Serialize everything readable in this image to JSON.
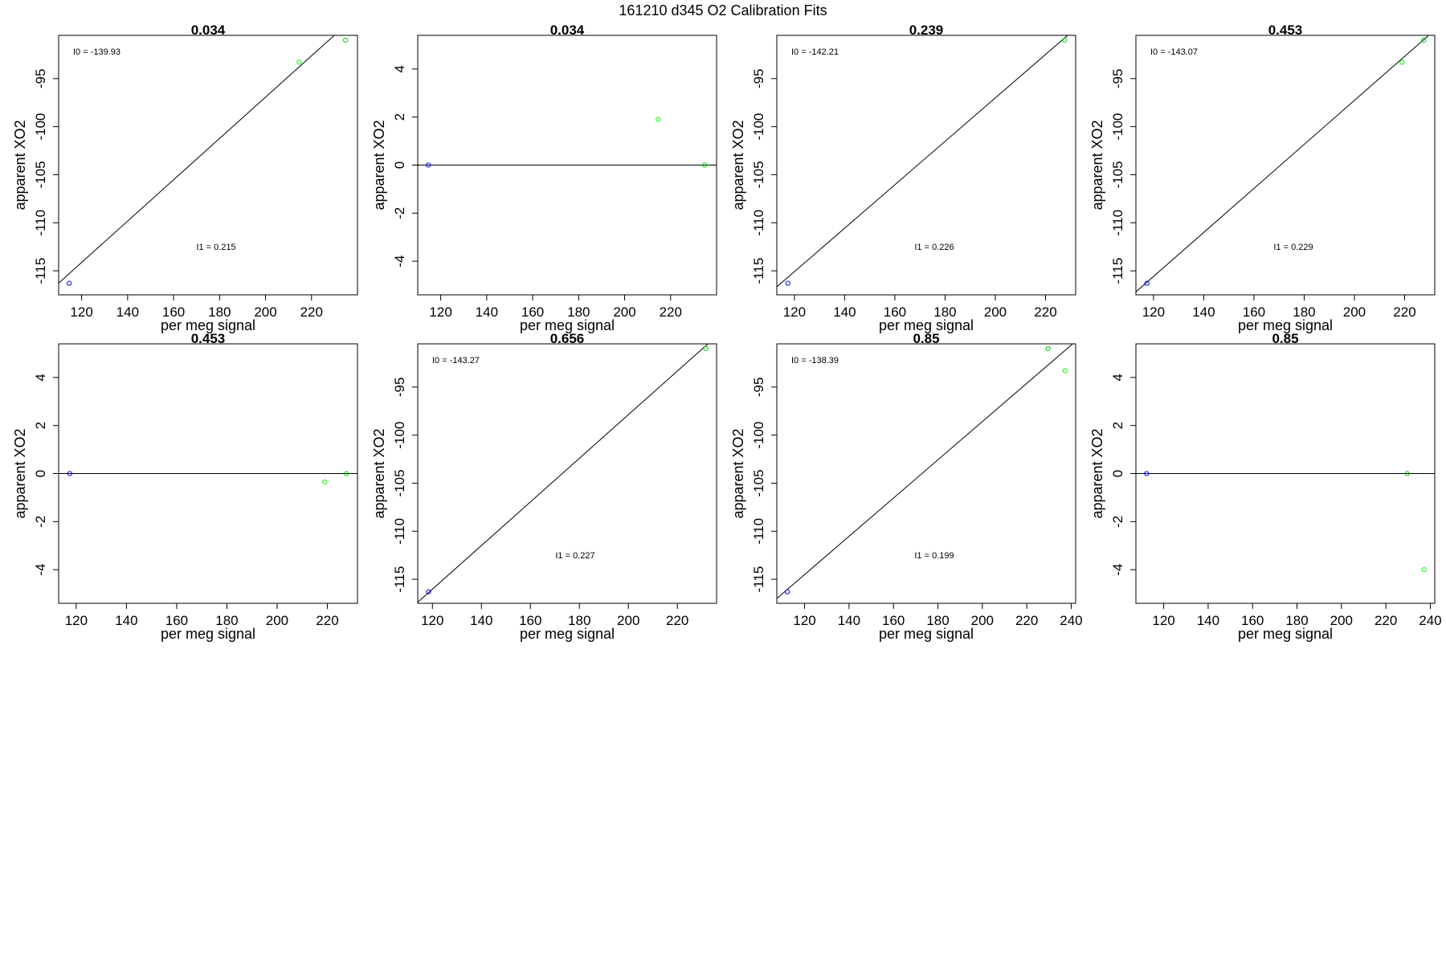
{
  "title": "161210   d345   O2 Calibration Fits",
  "colors": {
    "blue": "#0000ff",
    "green": "#00cc00",
    "lightgreen": "#00ff00",
    "line": "#000000"
  },
  "chart_data": [
    {
      "type": "scatter",
      "title": "0.034",
      "xlabel": "per meg signal",
      "ylabel": "apparent XO2",
      "xlim": [
        110,
        240
      ],
      "ylim": [
        -117.5,
        -90.5
      ],
      "xticks": [
        120,
        140,
        160,
        180,
        200,
        220
      ],
      "xtick_labels": [
        "120",
        "140",
        "160",
        "180",
        "200",
        "220"
      ],
      "yticks": [
        -115,
        -110,
        -105,
        -100,
        -95
      ],
      "ytick_labels": [
        "-115",
        "-110",
        "-105",
        "-100",
        "-95"
      ],
      "points": [
        {
          "x": 114.6,
          "y": -116.3,
          "color": "blue"
        },
        {
          "x": 214.6,
          "y": -93.3,
          "color": "lightgreen"
        },
        {
          "x": 234.8,
          "y": -91.0,
          "color": "green"
        }
      ],
      "fit_line": {
        "slope": 0.215,
        "intercept": -139.93
      },
      "ann_i0": "I0 =  -139.93",
      "ann_i1": "I1 =  0.215"
    },
    {
      "type": "scatter",
      "title": "0.034",
      "xlabel": "per meg signal",
      "ylabel": "apparent XO2",
      "xlim": [
        110,
        240
      ],
      "ylim": [
        -5.4,
        5.4
      ],
      "xticks": [
        120,
        140,
        160,
        180,
        200,
        220
      ],
      "xtick_labels": [
        "120",
        "140",
        "160",
        "180",
        "200",
        "220"
      ],
      "yticks": [
        -4,
        -2,
        0,
        2,
        4
      ],
      "ytick_labels": [
        "-4",
        "-2",
        "0",
        "2",
        "4"
      ],
      "points": [
        {
          "x": 114.6,
          "y": 0,
          "color": "blue"
        },
        {
          "x": 214.6,
          "y": 1.9,
          "color": "lightgreen"
        },
        {
          "x": 234.8,
          "y": 0,
          "color": "green"
        }
      ],
      "fit_line": {
        "slope": 0,
        "intercept": 0
      },
      "ann_i0": "",
      "ann_i1": ""
    },
    {
      "type": "scatter",
      "title": "0.239",
      "xlabel": "per meg signal",
      "ylabel": "apparent XO2",
      "xlim": [
        113,
        232
      ],
      "ylim": [
        -117.5,
        -90.5
      ],
      "xticks": [
        120,
        140,
        160,
        180,
        200,
        220
      ],
      "xtick_labels": [
        "120",
        "140",
        "160",
        "180",
        "200",
        "220"
      ],
      "yticks": [
        -115,
        -110,
        -105,
        -100,
        -95
      ],
      "ytick_labels": [
        "-115",
        "-110",
        "-105",
        "-100",
        "-95"
      ],
      "points": [
        {
          "x": 117.4,
          "y": -116.3,
          "color": "blue"
        },
        {
          "x": 227.6,
          "y": -91.0,
          "color": "green"
        }
      ],
      "fit_line": {
        "slope": 0.226,
        "intercept": -142.21
      },
      "ann_i0": "I0 =  -142.21",
      "ann_i1": "I1 =  0.226"
    },
    {
      "type": "scatter",
      "title": "0.453",
      "xlabel": "per meg signal",
      "ylabel": "apparent XO2",
      "xlim": [
        113,
        232
      ],
      "ylim": [
        -117.5,
        -90.5
      ],
      "xticks": [
        120,
        140,
        160,
        180,
        200,
        220
      ],
      "xtick_labels": [
        "120",
        "140",
        "160",
        "180",
        "200",
        "220"
      ],
      "yticks": [
        -115,
        -110,
        -105,
        -100,
        -95
      ],
      "ytick_labels": [
        "-115",
        "-110",
        "-105",
        "-100",
        "-95"
      ],
      "points": [
        {
          "x": 117.4,
          "y": -116.3,
          "color": "blue"
        },
        {
          "x": 219.0,
          "y": -93.3,
          "color": "lightgreen"
        },
        {
          "x": 227.6,
          "y": -91.0,
          "color": "green"
        }
      ],
      "fit_line": {
        "slope": 0.229,
        "intercept": -143.07
      },
      "ann_i0": "I0 =  -143.07",
      "ann_i1": "I1 =  0.229"
    },
    {
      "type": "scatter",
      "title": "0.453",
      "xlabel": "per meg signal",
      "ylabel": "apparent XO2",
      "xlim": [
        113,
        232
      ],
      "ylim": [
        -5.4,
        5.4
      ],
      "xticks": [
        120,
        140,
        160,
        180,
        200,
        220
      ],
      "xtick_labels": [
        "120",
        "140",
        "160",
        "180",
        "200",
        "220"
      ],
      "yticks": [
        -4,
        -2,
        0,
        2,
        4
      ],
      "ytick_labels": [
        "-4",
        "-2",
        "0",
        "2",
        "4"
      ],
      "points": [
        {
          "x": 117.4,
          "y": 0,
          "color": "blue"
        },
        {
          "x": 219.0,
          "y": -0.35,
          "color": "lightgreen"
        },
        {
          "x": 227.6,
          "y": 0,
          "color": "green"
        }
      ],
      "fit_line": {
        "slope": 0,
        "intercept": 0
      },
      "ann_i0": "",
      "ann_i1": ""
    },
    {
      "type": "scatter",
      "title": "0.656",
      "xlabel": "per meg signal",
      "ylabel": "apparent XO2",
      "xlim": [
        114,
        236
      ],
      "ylim": [
        -117.5,
        -90.5
      ],
      "xticks": [
        120,
        140,
        160,
        180,
        200,
        220
      ],
      "xtick_labels": [
        "120",
        "140",
        "160",
        "180",
        "200",
        "220"
      ],
      "yticks": [
        -115,
        -110,
        -105,
        -100,
        -95
      ],
      "ytick_labels": [
        "-115",
        "-110",
        "-105",
        "-100",
        "-95"
      ],
      "points": [
        {
          "x": 118.4,
          "y": -116.3,
          "color": "blue"
        },
        {
          "x": 231.6,
          "y": -91.0,
          "color": "green"
        }
      ],
      "fit_line": {
        "slope": 0.227,
        "intercept": -143.27
      },
      "ann_i0": "I0 =  -143.27",
      "ann_i1": "I1 =  0.227"
    },
    {
      "type": "scatter",
      "title": "0.85",
      "xlabel": "per meg signal",
      "ylabel": "apparent XO2",
      "xlim": [
        107.5,
        242
      ],
      "ylim": [
        -117.5,
        -90.5
      ],
      "xticks": [
        120,
        140,
        160,
        180,
        200,
        220,
        240
      ],
      "xtick_labels": [
        "120",
        "140",
        "160",
        "180",
        "200",
        "220",
        "240"
      ],
      "yticks": [
        -115,
        -110,
        -105,
        -100,
        -95
      ],
      "ytick_labels": [
        "-115",
        "-110",
        "-105",
        "-100",
        "-95"
      ],
      "points": [
        {
          "x": 112.3,
          "y": -116.3,
          "color": "blue"
        },
        {
          "x": 229.6,
          "y": -91.0,
          "color": "green"
        },
        {
          "x": 237.2,
          "y": -93.3,
          "color": "lightgreen"
        }
      ],
      "fit_line": {
        "slope": 0.199,
        "intercept": -138.39
      },
      "ann_i0": "I0 =  -138.39",
      "ann_i1": "I1 =  0.199"
    },
    {
      "type": "scatter",
      "title": "0.85",
      "xlabel": "per meg signal",
      "ylabel": "apparent XO2",
      "xlim": [
        107.5,
        242
      ],
      "ylim": [
        -5.4,
        5.4
      ],
      "xticks": [
        120,
        140,
        160,
        180,
        200,
        220,
        240
      ],
      "xtick_labels": [
        "120",
        "140",
        "160",
        "180",
        "200",
        "220",
        "240"
      ],
      "yticks": [
        -4,
        -2,
        0,
        2,
        4
      ],
      "ytick_labels": [
        "-4",
        "-2",
        "0",
        "2",
        "4"
      ],
      "points": [
        {
          "x": 112.3,
          "y": 0,
          "color": "blue"
        },
        {
          "x": 229.6,
          "y": 0,
          "color": "green"
        },
        {
          "x": 237.2,
          "y": -4.0,
          "color": "lightgreen"
        }
      ],
      "fit_line": {
        "slope": 0,
        "intercept": 0
      },
      "ann_i0": "",
      "ann_i1": ""
    }
  ]
}
